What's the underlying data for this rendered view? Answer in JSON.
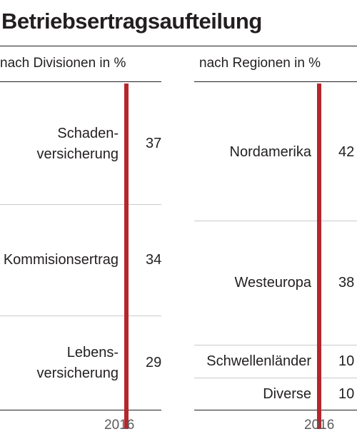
{
  "title": "Betriebsertragsaufteilung",
  "colors": {
    "bar": "#b5262d",
    "text": "#231f20",
    "separator": "#c9c9c9"
  },
  "chart_data": [
    {
      "type": "bar",
      "orientation": "stacked-vertical",
      "subtitle": "nach Divisionen in %",
      "xlabel": "2016",
      "categories": [
        "Schadenversicherung",
        "Kommisionsertrag",
        "Lebensversicherung"
      ],
      "labels": [
        "Schaden-\nversicherung",
        "Kommisionsertrag",
        "Lebens-\nversicherung"
      ],
      "values": [
        37,
        34,
        29
      ],
      "unit": "%"
    },
    {
      "type": "bar",
      "orientation": "stacked-vertical",
      "subtitle": "nach Regionen in %",
      "xlabel": "2016",
      "categories": [
        "Nordamerika",
        "Westeuropa",
        "Schwellenländer",
        "Diverse"
      ],
      "labels": [
        "Nordamerika",
        "Westeuropa",
        "Schwellenländer",
        "Diverse"
      ],
      "values": [
        42,
        38,
        10,
        10
      ],
      "unit": "%"
    }
  ]
}
